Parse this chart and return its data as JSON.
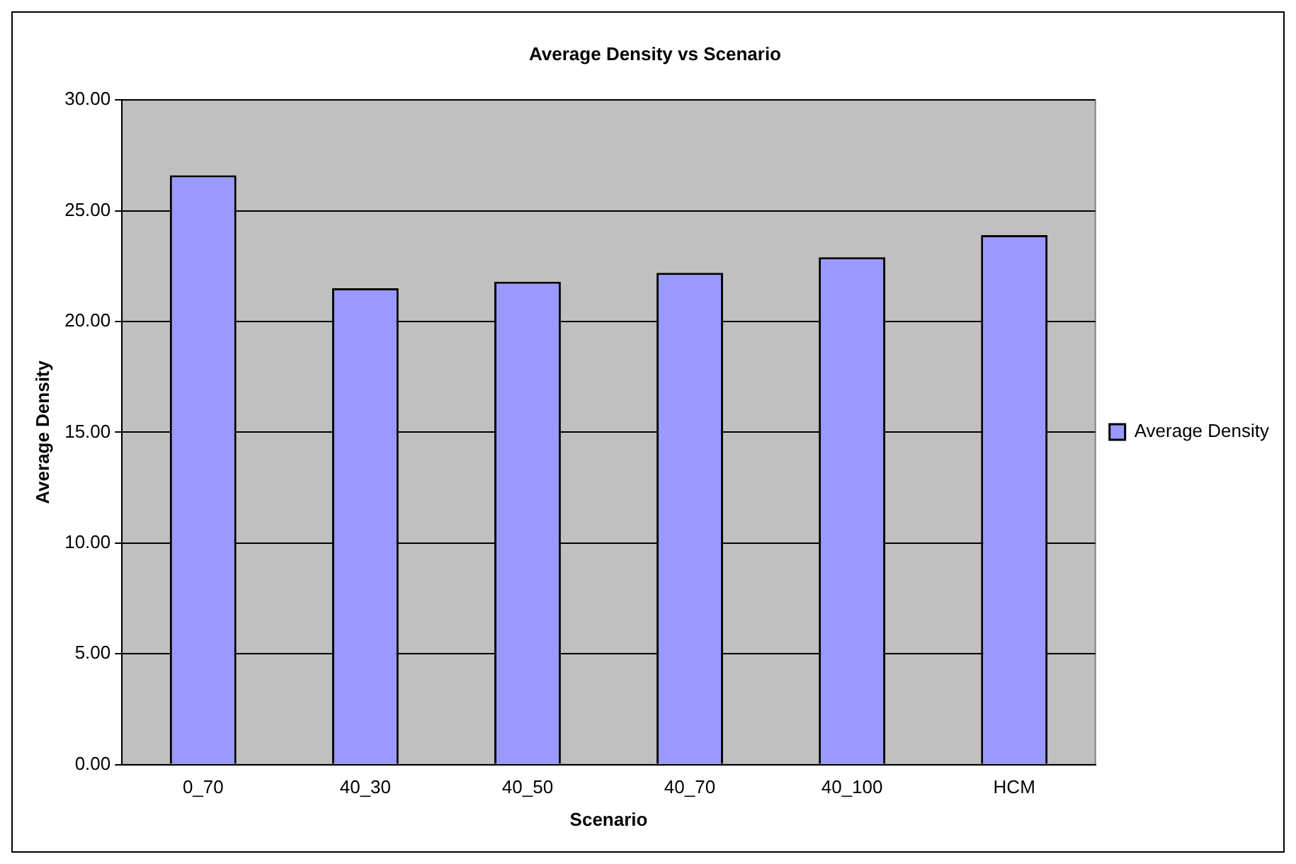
{
  "chart_data": {
    "type": "bar",
    "title": "Average Density vs Scenario",
    "xlabel": "Scenario",
    "ylabel": "Average Density",
    "categories": [
      "0_70",
      "40_30",
      "40_50",
      "40_70",
      "40_100",
      "HCM"
    ],
    "series": [
      {
        "name": "Average Density",
        "color": "#9999ff",
        "values": [
          26.6,
          21.5,
          21.8,
          22.2,
          22.9,
          23.9
        ]
      }
    ],
    "ylim": [
      0,
      30
    ],
    "yticks": [
      {
        "value": 0,
        "label": "0.00"
      },
      {
        "value": 5,
        "label": "5.00"
      },
      {
        "value": 10,
        "label": "10.00"
      },
      {
        "value": 15,
        "label": "15.00"
      },
      {
        "value": 20,
        "label": "20.00"
      },
      {
        "value": 25,
        "label": "25.00"
      },
      {
        "value": 30,
        "label": "30.00"
      }
    ],
    "grid": "y",
    "legend": "right"
  }
}
